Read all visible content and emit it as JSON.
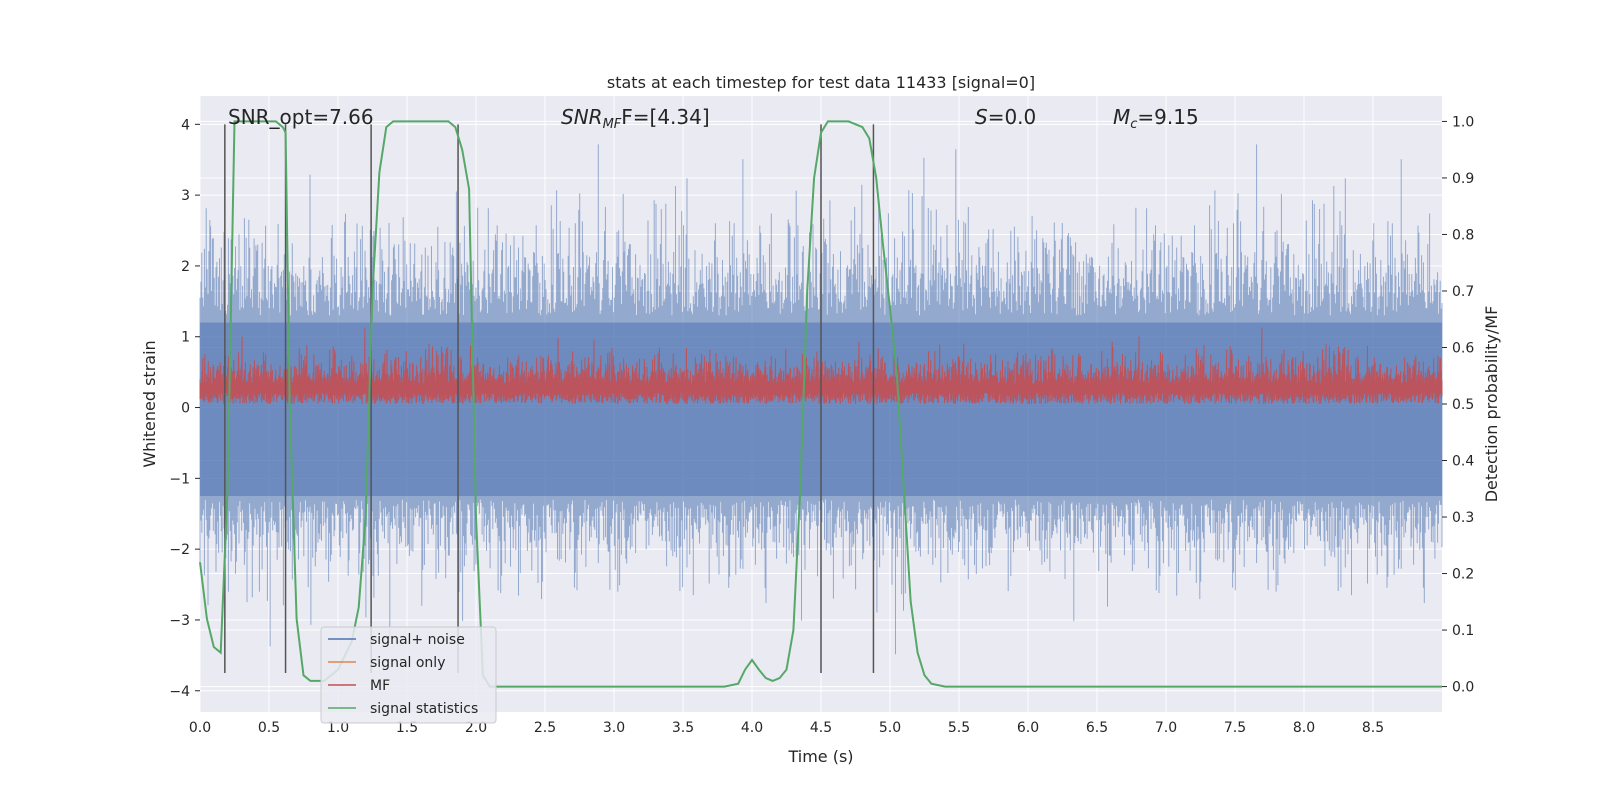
{
  "chart_data": {
    "type": "line",
    "title": "stats at each timestep for test data 11433 [signal=0]",
    "xlabel": "Time (s)",
    "ylabel_left": "Whitened strain",
    "ylabel_right": "Detection probability/MF",
    "xlim": [
      0.0,
      9.0
    ],
    "ylim_left": [
      -4.3,
      4.4
    ],
    "ylim_right": [
      -0.045,
      1.045
    ],
    "xticks": [
      "0.0",
      "0.5",
      "1.0",
      "1.5",
      "2.0",
      "2.5",
      "3.0",
      "3.5",
      "4.0",
      "4.5",
      "5.0",
      "5.5",
      "6.0",
      "6.5",
      "7.0",
      "7.5",
      "8.0",
      "8.5"
    ],
    "yticks_left": [
      "−4",
      "−3",
      "−2",
      "−1",
      "0",
      "1",
      "2",
      "3",
      "4"
    ],
    "yticks_right": [
      "0.0",
      "0.1",
      "0.2",
      "0.3",
      "0.4",
      "0.5",
      "0.6",
      "0.7",
      "0.8",
      "0.9",
      "1.0"
    ],
    "grid": true,
    "legend_position": "lower-left",
    "annotations": {
      "snr_opt": "SNR_opt=7.66",
      "snr_mf_prefix": "SNR",
      "snr_mf_sub": "MF",
      "snr_mf_suffix": "F=[4.34]",
      "s_var": "S",
      "s_val": "=0.0",
      "mc_var": "M",
      "mc_sub": "c",
      "mc_val": "=9.15"
    },
    "vertical_lines_x": [
      0.18,
      0.62,
      1.24,
      1.87,
      4.5,
      4.88
    ],
    "series": [
      {
        "name": "signal+ noise",
        "color": "#4c72b0",
        "style": "dense noise band, approx within [-2.5, 3.0] with spikes to ±4"
      },
      {
        "name": "signal only",
        "color": "#dd8452"
      },
      {
        "name": "MF",
        "color": "#c44e52",
        "style": "dense noise band on right axis, approx 0.50 to 0.62"
      },
      {
        "name": "signal statistics",
        "color": "#55a868",
        "x": [
          0.0,
          0.05,
          0.1,
          0.15,
          0.2,
          0.25,
          0.3,
          0.4,
          0.5,
          0.55,
          0.6,
          0.62,
          0.65,
          0.7,
          0.75,
          0.8,
          0.9,
          1.0,
          1.1,
          1.15,
          1.2,
          1.25,
          1.3,
          1.35,
          1.4,
          1.5,
          1.6,
          1.7,
          1.8,
          1.85,
          1.9,
          1.95,
          2.0,
          2.05,
          2.1,
          2.2,
          2.5,
          3.0,
          3.5,
          3.8,
          3.9,
          3.95,
          4.0,
          4.05,
          4.1,
          4.15,
          4.2,
          4.25,
          4.3,
          4.35,
          4.4,
          4.45,
          4.5,
          4.55,
          4.6,
          4.7,
          4.8,
          4.85,
          4.9,
          4.95,
          5.0,
          5.05,
          5.1,
          5.15,
          5.2,
          5.25,
          5.3,
          5.4,
          5.5,
          6.0,
          7.0,
          8.0,
          9.0
        ],
        "y": [
          0.22,
          0.12,
          0.07,
          0.06,
          0.35,
          1.0,
          1.0,
          1.0,
          1.0,
          1.0,
          0.99,
          0.98,
          0.5,
          0.12,
          0.02,
          0.01,
          0.01,
          0.03,
          0.08,
          0.14,
          0.3,
          0.7,
          0.91,
          0.99,
          1.0,
          1.0,
          1.0,
          1.0,
          1.0,
          0.99,
          0.95,
          0.88,
          0.3,
          0.02,
          0.0,
          0.0,
          0.0,
          0.0,
          0.0,
          0.0,
          0.005,
          0.03,
          0.047,
          0.03,
          0.015,
          0.01,
          0.015,
          0.03,
          0.1,
          0.35,
          0.7,
          0.9,
          0.98,
          1.0,
          1.0,
          1.0,
          0.99,
          0.97,
          0.9,
          0.78,
          0.67,
          0.55,
          0.35,
          0.15,
          0.06,
          0.02,
          0.005,
          0.0,
          0.0,
          0.0,
          0.0,
          0.0,
          0.0
        ]
      }
    ]
  }
}
